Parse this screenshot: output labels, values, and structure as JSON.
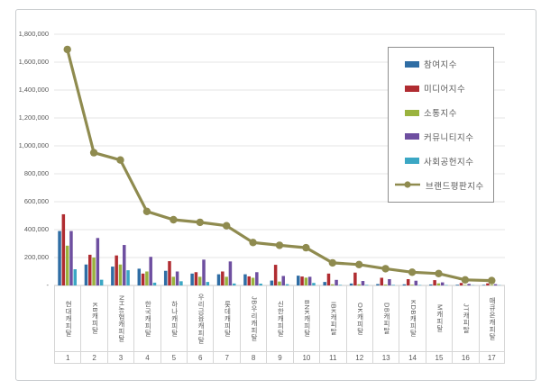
{
  "chart_data": {
    "type": "bar+line",
    "title": "",
    "grid": true,
    "legend_position": "right-inside",
    "categories": [
      "현대캐피탈",
      "KB캐피탈",
      "NH농협캐피탈",
      "한국캐피탈",
      "하나캐피탈",
      "우리금융캐피탈",
      "롯데캐피탈",
      "JB우리캐피탈",
      "신한캐피탈",
      "BNK캐피탈",
      "IBK캐피탈",
      "OK캐피탈",
      "DB캐피탈",
      "KDB캐피탈",
      "M캐피탈",
      "JT캐피탈",
      "애큐온캐피탈"
    ],
    "ranks": [
      "1",
      "2",
      "3",
      "4",
      "5",
      "6",
      "7",
      "8",
      "9",
      "10",
      "11",
      "12",
      "13",
      "14",
      "15",
      "16",
      "17"
    ],
    "bar_series": [
      {
        "name": "참여지수",
        "color": "#2f6da4",
        "values": [
          390000,
          150000,
          135000,
          120000,
          105000,
          85000,
          80000,
          80000,
          35000,
          70000,
          25000,
          14000,
          10000,
          8000,
          7000,
          5000,
          4000
        ]
      },
      {
        "name": "미디어지수",
        "color": "#b02c31",
        "values": [
          510000,
          220000,
          215000,
          85000,
          174000,
          95000,
          100000,
          65000,
          148000,
          64000,
          85000,
          92000,
          55000,
          45000,
          38000,
          18000,
          15000
        ]
      },
      {
        "name": "소통지수",
        "color": "#9ab33e",
        "values": [
          285000,
          200000,
          150000,
          100000,
          62000,
          62000,
          62000,
          55000,
          28000,
          56000,
          8000,
          8000,
          6000,
          5000,
          15000,
          4000,
          5000
        ]
      },
      {
        "name": "커뮤니티지수",
        "color": "#6e4fa0",
        "values": [
          390000,
          340000,
          290000,
          205000,
          100000,
          185000,
          172000,
          95000,
          68000,
          62000,
          40000,
          32000,
          45000,
          34000,
          22000,
          11000,
          9000
        ]
      },
      {
        "name": "사회공헌지수",
        "color": "#3ba7c4",
        "values": [
          116000,
          41000,
          109000,
          20000,
          30000,
          25000,
          14000,
          13000,
          9000,
          18000,
          4000,
          4000,
          4000,
          3000,
          3000,
          2000,
          2000
        ]
      }
    ],
    "line_series": {
      "name": "브랜드평판지수",
      "color": "#8f8b4f",
      "values": [
        1691000,
        951000,
        899000,
        530000,
        471000,
        452000,
        428000,
        308000,
        288000,
        270000,
        162000,
        150000,
        120000,
        95000,
        85000,
        40000,
        35000
      ]
    },
    "y_axis": {
      "min": 0,
      "max": 1800000,
      "step": 200000,
      "tick_labels": [
        "-",
        "200,000",
        "400,000",
        "600,000",
        "800,000",
        "1,000,000",
        "1,200,000",
        "1,400,000",
        "1,600,000",
        "1,800,000"
      ]
    },
    "colors": {
      "grid": "#e4e4e4",
      "axis_line": "#c9c9c9",
      "text": "#595959",
      "frame_border": "#c9cccf",
      "legend_border": "#8f8f8f"
    }
  }
}
